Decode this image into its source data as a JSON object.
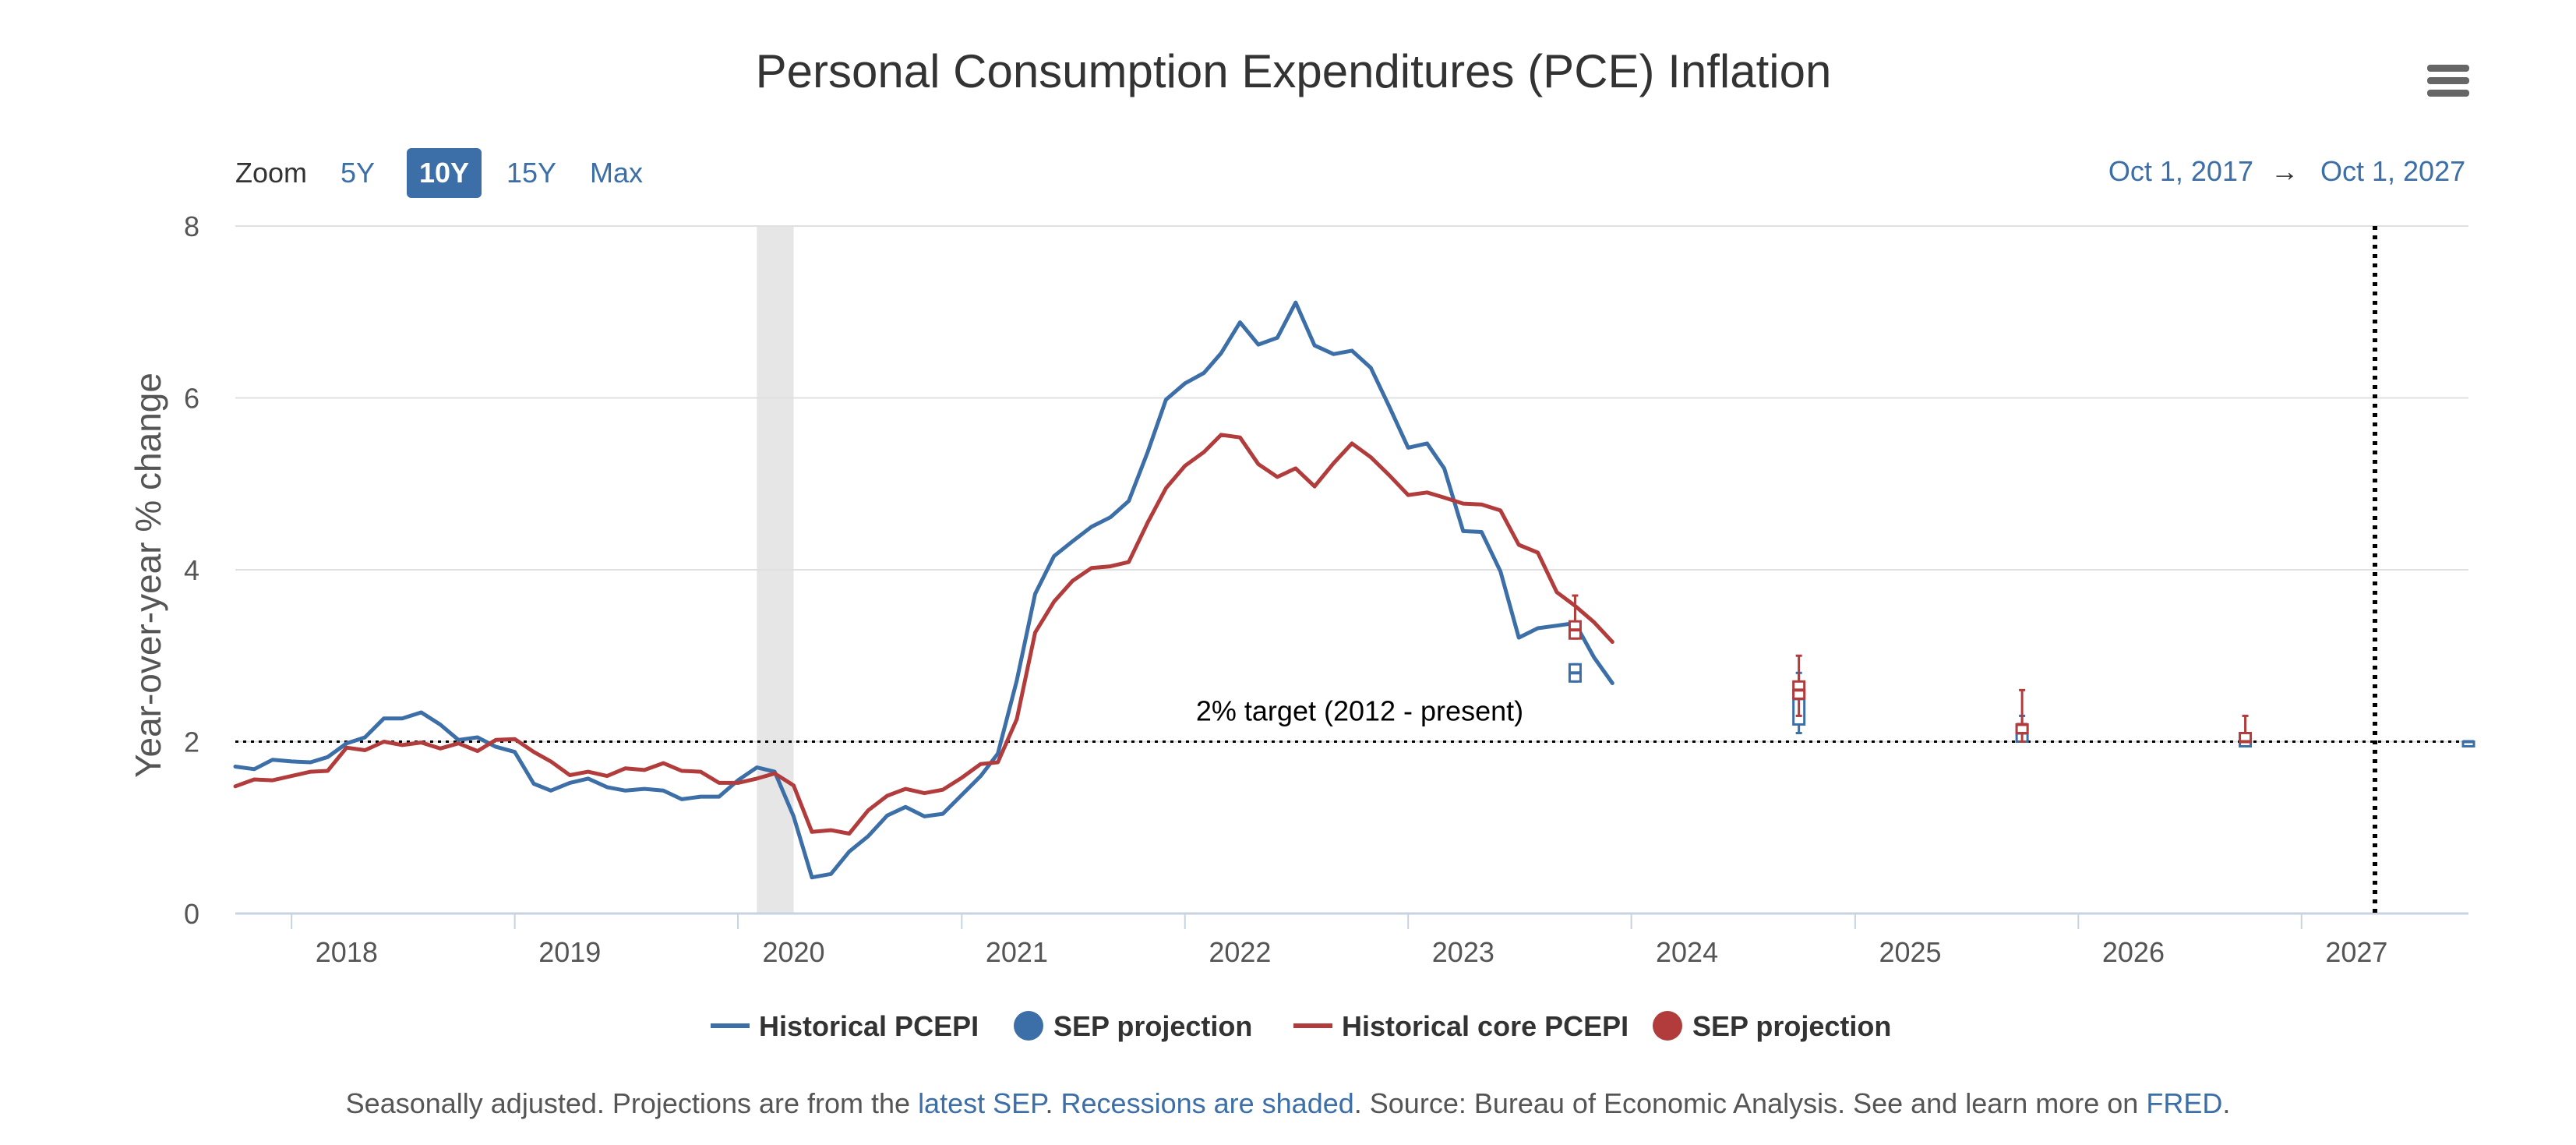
{
  "title": "Personal Consumption Expenditures (PCE) Inflation",
  "zoom": {
    "label": "Zoom",
    "options": [
      "5Y",
      "10Y",
      "15Y",
      "Max"
    ],
    "selected": "10Y"
  },
  "range": {
    "from": "Oct 1, 2017",
    "arrow": "→",
    "to": "Oct 1, 2027"
  },
  "footer": {
    "t1": "Seasonally adjusted. Projections are from the ",
    "link1": "latest SEP",
    "t2": ". ",
    "link2": "Recessions are shaded",
    "t3": ". Source: Bureau of Economic Analysis. See and learn more on ",
    "link3": "FRED",
    "t4": "."
  },
  "colors": {
    "pcepi": "#3c6ea7",
    "core": "#b23c3c",
    "recession": "#e6e6e6",
    "grid": "#e0e0e0",
    "accent": "#3c6ea7"
  },
  "chart_data": {
    "type": "line",
    "title": "Personal Consumption Expenditures (PCE) Inflation",
    "ylabel": "Year-over-year % change",
    "xlim": [
      "2017-10-01",
      "2027-10-01"
    ],
    "ylim": [
      0,
      8
    ],
    "y_ticks": [
      0,
      2,
      4,
      6,
      8
    ],
    "x_ticks": [
      "2018",
      "2019",
      "2020",
      "2021",
      "2022",
      "2023",
      "2024",
      "2025",
      "2026",
      "2027"
    ],
    "grid": true,
    "legend_position": "bottom-center",
    "recession_shading": [
      [
        "2020-02-01",
        "2020-04-01"
      ]
    ],
    "target_line": {
      "value": 2,
      "label": "2% target (2012 - present)"
    },
    "series": [
      {
        "name": "Historical PCEPI",
        "color": "#3c6ea7",
        "start": "2017-10",
        "values": [
          1.71,
          1.68,
          1.79,
          1.77,
          1.76,
          1.82,
          1.98,
          2.05,
          2.27,
          2.27,
          2.34,
          2.2,
          2.02,
          2.05,
          1.94,
          1.88,
          1.51,
          1.43,
          1.52,
          1.57,
          1.47,
          1.43,
          1.45,
          1.43,
          1.33,
          1.36,
          1.36,
          1.55,
          1.7,
          1.65,
          1.13,
          0.42,
          0.46,
          0.72,
          0.9,
          1.14,
          1.24,
          1.13,
          1.16,
          1.38,
          1.6,
          1.86,
          2.71,
          3.72,
          4.16,
          4.33,
          4.5,
          4.61,
          4.8,
          5.37,
          5.98,
          6.17,
          6.29,
          6.52,
          6.88,
          6.62,
          6.7,
          7.11,
          6.61,
          6.51,
          6.55,
          6.35,
          5.9,
          5.42,
          5.47,
          5.18,
          4.45,
          4.44,
          3.98,
          3.21,
          3.32,
          3.35,
          3.38,
          2.98,
          2.68
        ]
      },
      {
        "name": "Historical core PCEPI",
        "color": "#b23c3c",
        "start": "2017-10",
        "values": [
          1.48,
          1.56,
          1.55,
          1.6,
          1.65,
          1.66,
          1.93,
          1.9,
          2.0,
          1.96,
          1.99,
          1.92,
          1.98,
          1.89,
          2.02,
          2.03,
          1.88,
          1.77,
          1.61,
          1.65,
          1.6,
          1.69,
          1.67,
          1.75,
          1.66,
          1.65,
          1.52,
          1.52,
          1.57,
          1.63,
          1.49,
          0.95,
          0.97,
          0.93,
          1.2,
          1.37,
          1.45,
          1.4,
          1.44,
          1.58,
          1.74,
          1.76,
          2.26,
          3.27,
          3.63,
          3.87,
          4.02,
          4.04,
          4.09,
          4.55,
          4.95,
          5.21,
          5.37,
          5.57,
          5.54,
          5.23,
          5.08,
          5.18,
          4.97,
          5.24,
          5.47,
          5.31,
          5.1,
          4.87,
          4.9,
          4.84,
          4.77,
          4.76,
          4.69,
          4.29,
          4.2,
          3.74,
          3.58,
          3.39,
          3.16
        ]
      }
    ],
    "projections": [
      {
        "name": "SEP projection",
        "series": "PCEPI",
        "color": "#3c6ea7",
        "points": [
          {
            "x": "2023-10-01",
            "min": 2.7,
            "q1": 2.7,
            "median": 2.8,
            "q3": 2.9,
            "max": 2.9
          },
          {
            "x": "2024-10-01",
            "min": 2.1,
            "q1": 2.2,
            "median": 2.5,
            "q3": 2.6,
            "max": 2.8
          },
          {
            "x": "2025-10-01",
            "min": 2.0,
            "q1": 2.0,
            "median": 2.1,
            "q3": 2.2,
            "max": 2.3
          },
          {
            "x": "2026-10-01",
            "min": 2.0,
            "q1": 2.0,
            "median": 2.0,
            "q3": 2.0,
            "max": 2.1
          },
          {
            "x": "2027-10-01",
            "min": 2.0,
            "q1": 2.0,
            "median": 2.0,
            "q3": 2.0,
            "max": 2.0
          }
        ]
      },
      {
        "name": "SEP projection",
        "series": "Core PCEPI",
        "color": "#b23c3c",
        "points": [
          {
            "x": "2023-10-01",
            "min": 3.2,
            "q1": 3.2,
            "median": 3.3,
            "q3": 3.4,
            "max": 3.7
          },
          {
            "x": "2024-10-01",
            "min": 2.3,
            "q1": 2.5,
            "median": 2.6,
            "q3": 2.7,
            "max": 3.0
          },
          {
            "x": "2025-10-01",
            "min": 2.0,
            "q1": 2.1,
            "median": 2.2,
            "q3": 2.2,
            "max": 2.6
          },
          {
            "x": "2026-10-01",
            "min": 2.0,
            "q1": 2.0,
            "median": 2.0,
            "q3": 2.1,
            "max": 2.3
          }
        ]
      }
    ],
    "legend": [
      {
        "label": "Historical PCEPI",
        "symbol": "line",
        "color": "#3c6ea7"
      },
      {
        "label": "SEP projection",
        "symbol": "dot",
        "color": "#3c6ea7"
      },
      {
        "label": "Historical core PCEPI",
        "symbol": "line",
        "color": "#b23c3c"
      },
      {
        "label": "SEP projection",
        "symbol": "dot",
        "color": "#b23c3c"
      }
    ]
  }
}
